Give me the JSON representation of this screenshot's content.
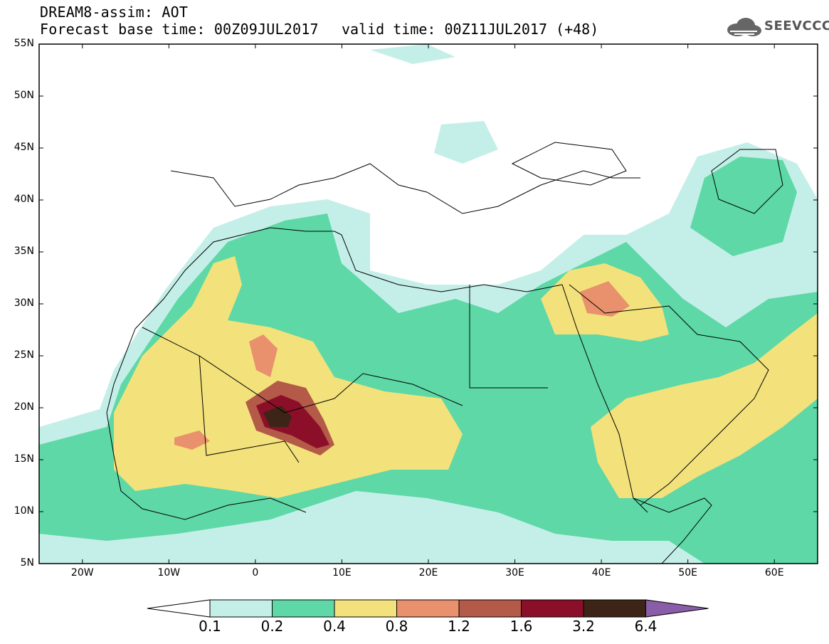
{
  "header": {
    "title": "DREAM8-assim: AOT",
    "forecast_base": "Forecast base time: 00Z09JUL2017",
    "valid_time": "valid time: 00Z11JUL2017 (+48)",
    "logo_text": "SEEVCCC",
    "logo_icon": "cloud-icon"
  },
  "map": {
    "projection": "lat-lon",
    "lon_range": [
      -25,
      65
    ],
    "lat_range": [
      5,
      55
    ],
    "lat_labels": [
      "55N",
      "50N",
      "45N",
      "40N",
      "35N",
      "30N",
      "25N",
      "20N",
      "15N",
      "10N",
      "5N"
    ],
    "lat_values": [
      55,
      50,
      45,
      40,
      35,
      30,
      25,
      20,
      15,
      10,
      5
    ],
    "lon_labels": [
      "20W",
      "10W",
      "0",
      "10E",
      "20E",
      "30E",
      "40E",
      "50E",
      "60E"
    ],
    "lon_values": [
      -20,
      -10,
      0,
      10,
      20,
      30,
      40,
      50,
      60
    ]
  },
  "colorbar": {
    "levels": [
      "0.1",
      "0.2",
      "0.4",
      "0.8",
      "1.2",
      "1.6",
      "3.2",
      "6.4"
    ],
    "colors": [
      "#c4efe8",
      "#5ed8a6",
      "#f3e27b",
      "#e9906d",
      "#b45a48",
      "#8c0f2a",
      "#3c2416"
    ],
    "under_color": "#ffffff",
    "over_color": "#8a5da8"
  }
}
